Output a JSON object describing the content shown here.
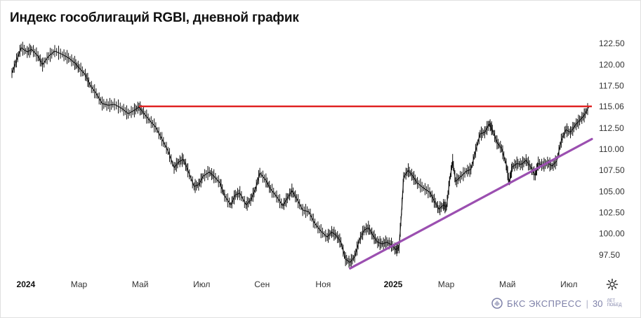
{
  "title": "Индекс гособлигаций RGBI, дневной график",
  "colors": {
    "price": "#111111",
    "resistance": "#e02424",
    "support": "#9b4fb0",
    "axis_text": "#333333",
    "brand": "#7d80a8"
  },
  "icons": {
    "settings": "gear-icon",
    "brand": "bcs-logo-icon"
  },
  "brand": {
    "name": "БКС ЭКСПРЕСС",
    "anniversary": "30",
    "anniversary_small": "ЛЕТ ПОБЕД"
  },
  "chart_data": {
    "type": "line",
    "title": "Индекс гособлигаций RGBI, дневной график",
    "x_unit": "months since Jan 2024",
    "x_ticks": [
      {
        "x": 0,
        "label": "2024",
        "bold": true
      },
      {
        "x": 2,
        "label": "Мар",
        "bold": false
      },
      {
        "x": 4,
        "label": "Май",
        "bold": false
      },
      {
        "x": 6,
        "label": "Июл",
        "bold": false
      },
      {
        "x": 8,
        "label": "Сен",
        "bold": false
      },
      {
        "x": 10,
        "label": "Ноя",
        "bold": false
      },
      {
        "x": 12,
        "label": "2025",
        "bold": true
      },
      {
        "x": 14,
        "label": "Мар",
        "bold": false
      },
      {
        "x": 16,
        "label": "Май",
        "bold": false
      },
      {
        "x": 18,
        "label": "Июл",
        "bold": false
      }
    ],
    "y_ticks": [
      {
        "v": 97.5,
        "label": "97.50"
      },
      {
        "v": 100.0,
        "label": "100.00"
      },
      {
        "v": 102.5,
        "label": "102.50"
      },
      {
        "v": 105.0,
        "label": "105.00"
      },
      {
        "v": 107.5,
        "label": "107.50"
      },
      {
        "v": 110.0,
        "label": "110.00"
      },
      {
        "v": 112.5,
        "label": "112.50"
      },
      {
        "v": 115.06,
        "label": "115.06"
      },
      {
        "v": 117.5,
        "label": "117.50"
      },
      {
        "v": 120.0,
        "label": "120.00"
      },
      {
        "v": 122.5,
        "label": "122.50"
      }
    ],
    "ylim": [
      95.5,
      123.5
    ],
    "xlim": [
      -0.15,
      18.8
    ],
    "series": [
      {
        "type": "ohlc-line",
        "points": [
          [
            -0.15,
            119.0
          ],
          [
            0.0,
            120.5
          ],
          [
            0.15,
            122.0
          ],
          [
            0.35,
            121.5
          ],
          [
            0.5,
            121.8
          ],
          [
            0.7,
            121.0
          ],
          [
            0.85,
            120.0
          ],
          [
            1.05,
            121.0
          ],
          [
            1.25,
            121.6
          ],
          [
            1.5,
            121.2
          ],
          [
            1.7,
            120.8
          ],
          [
            1.9,
            120.2
          ],
          [
            2.05,
            119.6
          ],
          [
            2.25,
            118.8
          ],
          [
            2.4,
            117.6
          ],
          [
            2.6,
            116.6
          ],
          [
            2.8,
            115.4
          ],
          [
            3.0,
            115.2
          ],
          [
            3.2,
            115.3
          ],
          [
            3.45,
            114.8
          ],
          [
            3.65,
            114.2
          ],
          [
            3.85,
            114.6
          ],
          [
            4.0,
            115.0
          ],
          [
            4.15,
            114.3
          ],
          [
            4.35,
            113.4
          ],
          [
            4.55,
            112.6
          ],
          [
            4.75,
            111.2
          ],
          [
            4.95,
            109.8
          ],
          [
            5.15,
            107.8
          ],
          [
            5.3,
            108.5
          ],
          [
            5.45,
            108.8
          ],
          [
            5.6,
            107.5
          ],
          [
            5.8,
            105.6
          ],
          [
            5.95,
            105.8
          ],
          [
            6.1,
            106.8
          ],
          [
            6.3,
            107.3
          ],
          [
            6.45,
            106.8
          ],
          [
            6.65,
            106.0
          ],
          [
            6.8,
            104.5
          ],
          [
            7.0,
            103.4
          ],
          [
            7.15,
            104.6
          ],
          [
            7.3,
            104.8
          ],
          [
            7.5,
            103.4
          ],
          [
            7.65,
            104.0
          ],
          [
            7.8,
            105.2
          ],
          [
            7.95,
            107.2
          ],
          [
            8.15,
            106.3
          ],
          [
            8.3,
            105.3
          ],
          [
            8.5,
            104.4
          ],
          [
            8.7,
            103.3
          ],
          [
            8.85,
            104.2
          ],
          [
            9.0,
            105.1
          ],
          [
            9.15,
            104.2
          ],
          [
            9.35,
            102.8
          ],
          [
            9.55,
            102.6
          ],
          [
            9.75,
            101.2
          ],
          [
            9.95,
            100.3
          ],
          [
            10.15,
            99.6
          ],
          [
            10.3,
            100.2
          ],
          [
            10.45,
            99.8
          ],
          [
            10.6,
            99.0
          ],
          [
            10.75,
            97.0
          ],
          [
            10.9,
            96.6
          ],
          [
            11.05,
            97.3
          ],
          [
            11.2,
            99.2
          ],
          [
            11.35,
            100.4
          ],
          [
            11.5,
            100.7
          ],
          [
            11.65,
            99.8
          ],
          [
            11.8,
            99.0
          ],
          [
            11.95,
            98.8
          ],
          [
            12.1,
            99.0
          ],
          [
            12.25,
            98.7
          ],
          [
            12.4,
            98.1
          ],
          [
            12.5,
            98.4
          ],
          [
            12.58,
            102.5
          ],
          [
            12.65,
            106.7
          ],
          [
            12.8,
            107.5
          ],
          [
            12.95,
            106.8
          ],
          [
            13.1,
            106.0
          ],
          [
            13.3,
            105.4
          ],
          [
            13.5,
            104.9
          ],
          [
            13.65,
            103.9
          ],
          [
            13.8,
            102.9
          ],
          [
            13.95,
            103.4
          ],
          [
            14.05,
            103.1
          ],
          [
            14.15,
            106.2
          ],
          [
            14.25,
            108.6
          ],
          [
            14.35,
            106.2
          ],
          [
            14.5,
            106.7
          ],
          [
            14.7,
            107.4
          ],
          [
            14.85,
            107.6
          ],
          [
            15.0,
            109.8
          ],
          [
            15.15,
            111.8
          ],
          [
            15.3,
            112.0
          ],
          [
            15.45,
            113.0
          ],
          [
            15.55,
            112.3
          ],
          [
            15.7,
            110.8
          ],
          [
            15.85,
            110.1
          ],
          [
            16.0,
            108.2
          ],
          [
            16.1,
            106.1
          ],
          [
            16.2,
            107.9
          ],
          [
            16.35,
            108.3
          ],
          [
            16.5,
            108.2
          ],
          [
            16.65,
            108.7
          ],
          [
            16.8,
            107.9
          ],
          [
            16.95,
            106.9
          ],
          [
            17.05,
            108.3
          ],
          [
            17.2,
            108.1
          ],
          [
            17.35,
            108.4
          ],
          [
            17.5,
            108.0
          ],
          [
            17.65,
            108.6
          ],
          [
            17.8,
            111.0
          ],
          [
            17.95,
            112.3
          ],
          [
            18.1,
            112.0
          ],
          [
            18.25,
            112.8
          ],
          [
            18.4,
            113.4
          ],
          [
            18.55,
            114.0
          ],
          [
            18.7,
            115.0
          ]
        ]
      }
    ],
    "lines": [
      {
        "type": "horizontal",
        "y": 115.06,
        "x_from": 4.0,
        "x_to": 18.8
      },
      {
        "type": "trend",
        "x1": 10.9,
        "y1": 95.9,
        "x2": 18.8,
        "y2": 111.2
      }
    ],
    "current_value": 115.06
  }
}
